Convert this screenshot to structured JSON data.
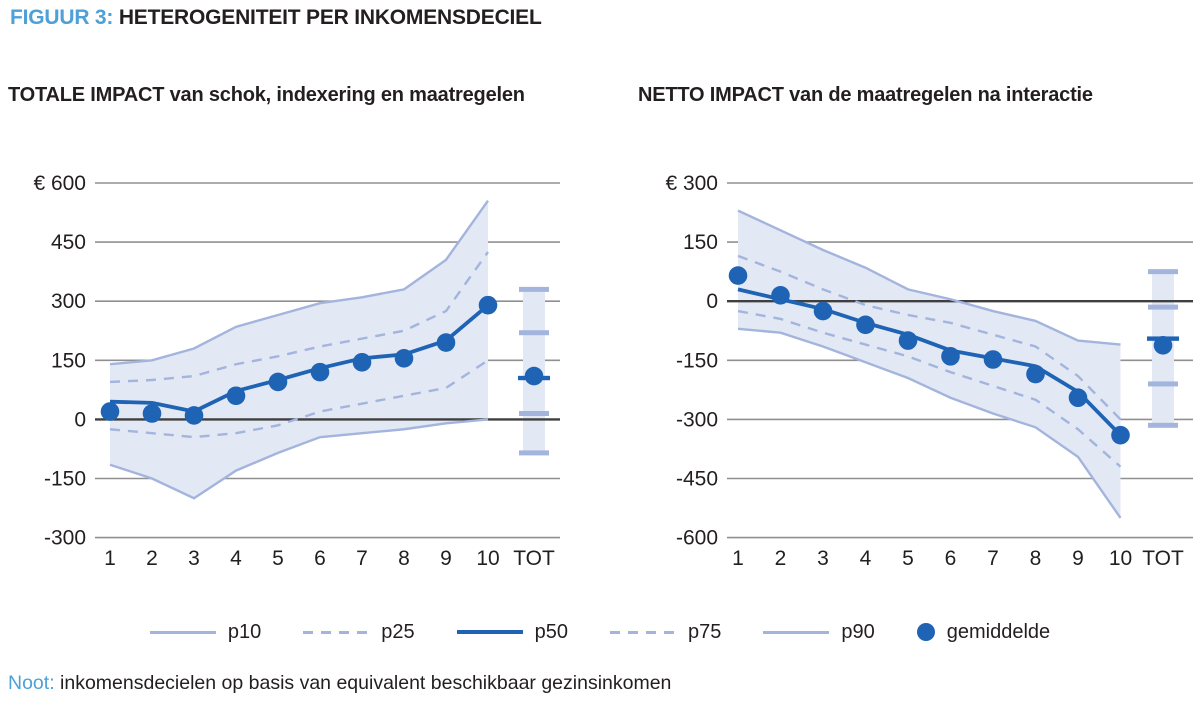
{
  "header": {
    "prefix": "FIGUUR 3:",
    "title": "HETEROGENITEIT PER INKOMENSDECIEL"
  },
  "note": {
    "prefix": "Noot:",
    "text": "inkomensdecielen op basis van equivalent beschikbaar gezinsinkomen"
  },
  "legend": {
    "items": [
      {
        "label": "p10",
        "style": "light-solid"
      },
      {
        "label": "p25",
        "style": "light-dashed"
      },
      {
        "label": "p50",
        "style": "dark-solid"
      },
      {
        "label": "p75",
        "style": "light-dashed"
      },
      {
        "label": "p90",
        "style": "light-solid"
      },
      {
        "label": "gemiddelde",
        "style": "dark-dot"
      }
    ]
  },
  "colors": {
    "accent_blue": "#4da0d8",
    "dark_blue": "#1f63b5",
    "light_blue": "#a3b4dd",
    "band_fill": "#e3e8f5",
    "text_dark": "#231f20",
    "grid": "#909090",
    "zero_line": "#3f3f3f"
  },
  "chart_data": [
    {
      "type": "line",
      "subtype": "fan-chart-percentiles",
      "title": "TOTALE IMPACT van schok, indexering en maatregelen",
      "categories": [
        "1",
        "2",
        "3",
        "4",
        "5",
        "6",
        "7",
        "8",
        "9",
        "10",
        "TOT"
      ],
      "ylim": [
        -300,
        600
      ],
      "yticks": [
        600,
        450,
        300,
        150,
        0,
        -150,
        -300
      ],
      "ytick_labels": [
        "€ 600",
        "450",
        "300",
        "150",
        "0",
        "-150",
        "-300"
      ],
      "grid": "horizontal",
      "series": [
        {
          "name": "p90",
          "values": [
            140,
            150,
            180,
            235,
            265,
            295,
            310,
            330,
            405,
            555
          ]
        },
        {
          "name": "p75",
          "values": [
            95,
            100,
            110,
            140,
            160,
            185,
            205,
            225,
            275,
            425
          ]
        },
        {
          "name": "p50",
          "values": [
            45,
            42,
            20,
            72,
            100,
            130,
            155,
            165,
            200,
            290
          ]
        },
        {
          "name": "p25",
          "values": [
            -25,
            -35,
            -45,
            -35,
            -15,
            20,
            40,
            60,
            80,
            150
          ]
        },
        {
          "name": "p10",
          "values": [
            -115,
            -150,
            -200,
            -130,
            -85,
            -45,
            -35,
            -25,
            -10,
            0
          ]
        },
        {
          "name": "gemiddelde",
          "values": [
            20,
            15,
            10,
            60,
            95,
            120,
            145,
            155,
            195,
            290
          ]
        }
      ],
      "tot": {
        "p90": 330,
        "p75": 220,
        "p50": 105,
        "p25": 15,
        "p10": -85,
        "gemiddelde": 110
      }
    },
    {
      "type": "line",
      "subtype": "fan-chart-percentiles",
      "title": "NETTO IMPACT van de maatregelen na interactie",
      "categories": [
        "1",
        "2",
        "3",
        "4",
        "5",
        "6",
        "7",
        "8",
        "9",
        "10",
        "TOT"
      ],
      "ylim": [
        -600,
        300
      ],
      "yticks": [
        300,
        150,
        0,
        -150,
        -300,
        -450,
        -600
      ],
      "ytick_labels": [
        "€ 300",
        "150",
        "0",
        "-150",
        "-300",
        "-450",
        "-600"
      ],
      "grid": "horizontal",
      "series": [
        {
          "name": "p90",
          "values": [
            230,
            180,
            130,
            85,
            30,
            5,
            -25,
            -50,
            -100,
            -110
          ]
        },
        {
          "name": "p75",
          "values": [
            115,
            75,
            30,
            -10,
            -35,
            -55,
            -85,
            -115,
            -190,
            -300
          ]
        },
        {
          "name": "p50",
          "values": [
            30,
            5,
            -20,
            -55,
            -85,
            -125,
            -145,
            -165,
            -230,
            -340
          ]
        },
        {
          "name": "p25",
          "values": [
            -25,
            -45,
            -80,
            -110,
            -140,
            -180,
            -215,
            -250,
            -325,
            -420
          ]
        },
        {
          "name": "p10",
          "values": [
            -70,
            -80,
            -115,
            -155,
            -195,
            -245,
            -285,
            -320,
            -395,
            -550
          ]
        },
        {
          "name": "gemiddelde",
          "values": [
            65,
            15,
            -25,
            -60,
            -100,
            -140,
            -148,
            -185,
            -245,
            -340
          ]
        }
      ],
      "tot": {
        "p90": 75,
        "p75": -15,
        "p50": -95,
        "p25": -210,
        "p10": -315,
        "gemiddelde": -112
      }
    }
  ]
}
